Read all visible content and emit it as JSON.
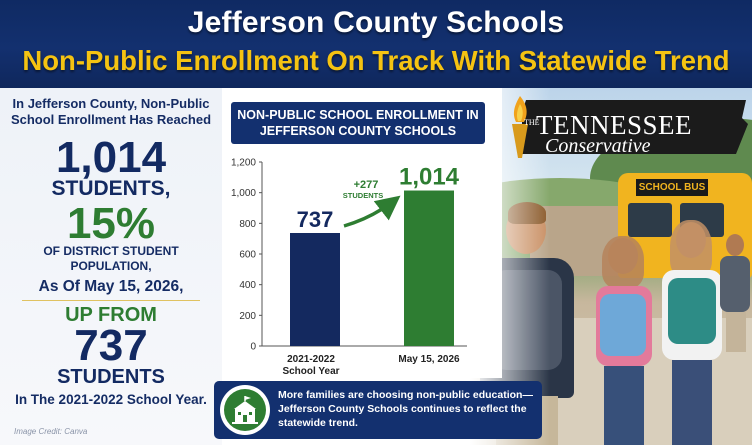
{
  "header": {
    "title": "Jefferson County Schools",
    "subtitle": "Non-Public Enrollment On Track With Statewide Trend"
  },
  "left_panel": {
    "intro": "In Jefferson County, Non-Public School Enrollment Has Reached",
    "students_count": "1,014",
    "students_word": "STUDENTS,",
    "percent": "15%",
    "percent_caption": "OF DISTRICT STUDENT POPULATION,",
    "as_of": "As Of May 15, 2026,",
    "up_from": "UP FROM",
    "previous_count": "737",
    "previous_word": "STUDENTS",
    "school_year": "In The 2021-2022 School Year."
  },
  "image_credit": "Image Credit: Canva",
  "logo": {
    "the": "THE",
    "word1": "TENNESSEE",
    "word2": "Conservative"
  },
  "photo": {
    "bus_sign": "SCHOOL BUS"
  },
  "banner": {
    "icon": "school-icon",
    "text": "More families are choosing non-public education— Jefferson County Schools continues to reflect the statewide trend."
  },
  "colors": {
    "navy": "#13306f",
    "gold": "#f5c312",
    "green": "#2e7d32",
    "bar_navy": "#14295f",
    "bar_green": "#2e7d32"
  },
  "chart_data": {
    "type": "bar",
    "title": "NON-PUBLIC SCHOOL ENROLLMENT IN JEFFERSON COUNTY SCHOOLS",
    "categories": [
      "2021-2022 School Year",
      "May 15, 2026"
    ],
    "category_lines": [
      [
        "2021-2022",
        "School Year"
      ],
      [
        "May 15, 2026"
      ]
    ],
    "values": [
      737,
      1014
    ],
    "value_labels": [
      "737",
      "1,014"
    ],
    "ylim": [
      0,
      1200
    ],
    "yticks": [
      0,
      200,
      400,
      600,
      800,
      1000,
      1200
    ],
    "ytick_labels": [
      "0",
      "200",
      "400",
      "600",
      "800",
      "1,000",
      "1,200"
    ],
    "grid": false,
    "annotation": {
      "value": "+277",
      "label": "STUDENTS"
    }
  }
}
